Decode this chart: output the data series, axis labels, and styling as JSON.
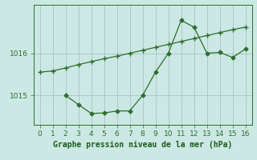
{
  "line1_x": [
    0,
    1,
    2,
    3,
    4,
    5,
    6,
    7,
    8,
    9,
    10,
    11,
    12,
    13,
    14,
    15,
    16
  ],
  "line1_y": [
    1015.55,
    1015.58,
    1015.65,
    1015.73,
    1015.8,
    1015.87,
    1015.93,
    1016.0,
    1016.07,
    1016.14,
    1016.21,
    1016.28,
    1016.35,
    1016.42,
    1016.49,
    1016.56,
    1016.62
  ],
  "line2_x": [
    2,
    3,
    4,
    5,
    6,
    7,
    8,
    9,
    10,
    11,
    12,
    13,
    14,
    15,
    16
  ],
  "line2_y": [
    1015.0,
    1014.78,
    1014.57,
    1014.58,
    1014.63,
    1014.63,
    1015.0,
    1015.55,
    1016.0,
    1016.78,
    1016.62,
    1016.0,
    1016.02,
    1015.9,
    1016.1
  ],
  "line_color": "#2d6e2d",
  "bg_color": "#cce8e4",
  "grid_color": "#9bbfbb",
  "xlabel": "Graphe pression niveau de la mer (hPa)",
  "xlabel_color": "#1a5c1a",
  "ylim": [
    1014.3,
    1017.15
  ],
  "xlim": [
    -0.5,
    16.5
  ],
  "yticks": [
    1015,
    1016
  ],
  "xticks": [
    0,
    1,
    2,
    3,
    4,
    5,
    6,
    7,
    8,
    9,
    10,
    11,
    12,
    13,
    14,
    15,
    16
  ],
  "tick_fontsize": 6.5,
  "xlabel_fontsize": 7.0,
  "marker1": "+",
  "marker2": "D",
  "linewidth": 0.9,
  "markersize1": 4.5,
  "markersize2": 2.5
}
